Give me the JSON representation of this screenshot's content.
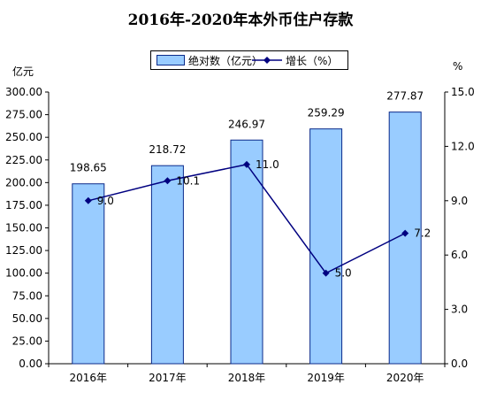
{
  "chart_data": {
    "type": "bar+line",
    "title": "2016年-2020年本外币住户存款",
    "categories": [
      "2016年",
      "2017年",
      "2018年",
      "2019年",
      "2020年"
    ],
    "series": [
      {
        "name": "绝对数（亿元）",
        "type": "bar",
        "axis": "left",
        "values": [
          198.65,
          218.72,
          246.97,
          259.29,
          277.87
        ],
        "labels": [
          "198.65",
          "218.72",
          "246.97",
          "259.29",
          "277.87"
        ]
      },
      {
        "name": "增长（%）",
        "type": "line",
        "axis": "right",
        "values": [
          9.0,
          10.1,
          11.0,
          5.0,
          7.2
        ],
        "labels": [
          "9.0",
          "10.1",
          "11.0",
          "5.0",
          "7.2"
        ]
      }
    ],
    "y_left": {
      "label": "亿元",
      "min": 0,
      "max": 300,
      "ticks": [
        "0.00",
        "25.00",
        "50.00",
        "75.00",
        "100.00",
        "125.00",
        "150.00",
        "175.00",
        "200.00",
        "225.00",
        "250.00",
        "275.00",
        "300.00"
      ]
    },
    "y_right": {
      "label": "%",
      "min": 0,
      "max": 15,
      "ticks": [
        "0.0",
        "3.0",
        "6.0",
        "9.0",
        "12.0",
        "15.0"
      ]
    },
    "grid": false,
    "legend_position": "top",
    "colors": {
      "bar": "#99ccff",
      "bar_border": "#0a2a8a",
      "line": "#000080"
    }
  }
}
